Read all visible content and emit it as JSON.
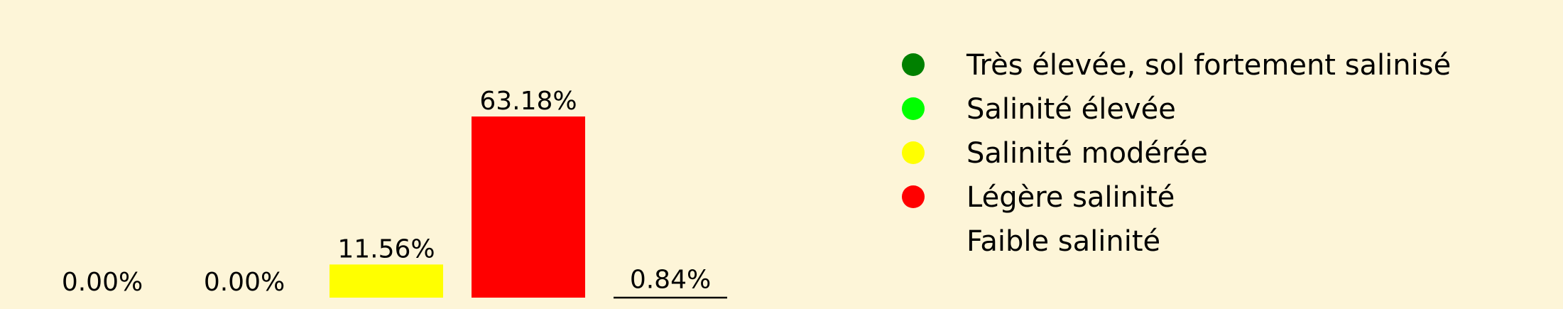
{
  "background_color": "#fdf5d8",
  "chart_data": {
    "type": "bar",
    "categories": [
      "Très élevée, sol fortement salinisé",
      "Salinité élevée",
      "Salinité modérée",
      "Légère salinité",
      "Faible salinité"
    ],
    "values": [
      0.0,
      0.0,
      11.56,
      63.18,
      0.84
    ],
    "value_labels": [
      "0.00%",
      "0.00%",
      "11.56%",
      "63.18%",
      "0.84%"
    ],
    "colors": [
      "#008000",
      "#00ff00",
      "#ffff00",
      "#ff0000",
      "#fdf5d8"
    ],
    "bar_outline_bottom": [
      false,
      false,
      false,
      false,
      true
    ],
    "ylim": [
      0,
      63.18
    ],
    "grid": false,
    "axes_visible": false,
    "legend_placement": "right",
    "legend_markers": [
      "circle",
      "circle",
      "circle",
      "circle",
      "none"
    ],
    "title": "",
    "xlabel": "",
    "ylabel": ""
  }
}
